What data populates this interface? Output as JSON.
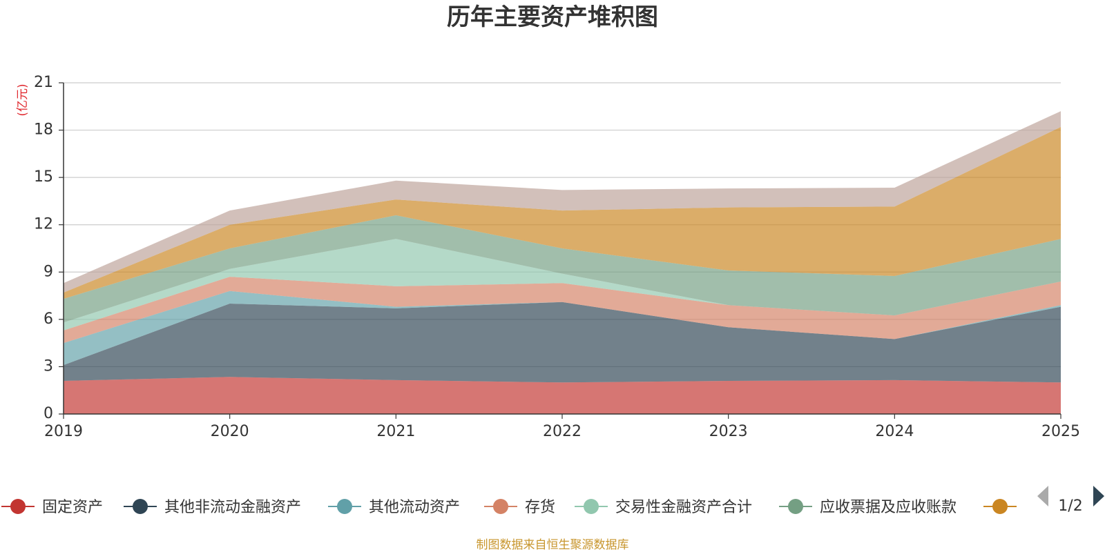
{
  "chart_data": {
    "type": "area",
    "stacked": true,
    "title": "历年主要资产堆积图",
    "ylabel": "(亿元)",
    "xlabel": "",
    "ylim": [
      0,
      21
    ],
    "yticks": [
      0,
      3,
      6,
      9,
      12,
      15,
      18,
      21
    ],
    "categories": [
      "2019",
      "2020",
      "2021",
      "2022",
      "2023",
      "2024",
      "2025"
    ],
    "grid": true,
    "series": [
      {
        "name": "固定资产",
        "color": "#c23531",
        "values": [
          2.1,
          2.35,
          2.15,
          2.0,
          2.1,
          2.15,
          2.0
        ]
      },
      {
        "name": "其他非流动金融资产",
        "color": "#2f4554",
        "values": [
          1.0,
          4.65,
          4.55,
          5.1,
          3.4,
          2.6,
          4.8
        ]
      },
      {
        "name": "其他流动资产",
        "color": "#61a0a8",
        "values": [
          1.4,
          0.8,
          0.1,
          0.0,
          0.0,
          0.0,
          0.1
        ]
      },
      {
        "name": "存货",
        "color": "#d48265",
        "values": [
          0.8,
          0.9,
          1.3,
          1.2,
          1.4,
          1.5,
          1.5
        ]
      },
      {
        "name": "交易性金融资产合计",
        "color": "#91c7ae",
        "values": [
          0.5,
          0.5,
          3.0,
          0.6,
          0.0,
          0.0,
          0.0
        ]
      },
      {
        "name": "应收票据及应收账款",
        "color": "#749f83",
        "values": [
          1.5,
          1.3,
          1.5,
          1.6,
          2.2,
          2.5,
          2.7
        ]
      },
      {
        "name": "",
        "color": "#ca8622",
        "values": [
          0.4,
          1.5,
          1.0,
          2.4,
          4.0,
          4.4,
          7.1
        ]
      },
      {
        "name": "",
        "color": "#bda29a",
        "values": [
          0.6,
          0.9,
          1.2,
          1.3,
          1.2,
          1.2,
          1.0
        ]
      }
    ],
    "legend": {
      "position": "bottom",
      "page": "1/2"
    }
  },
  "source_note": "制图数据来自恒生聚源数据库"
}
